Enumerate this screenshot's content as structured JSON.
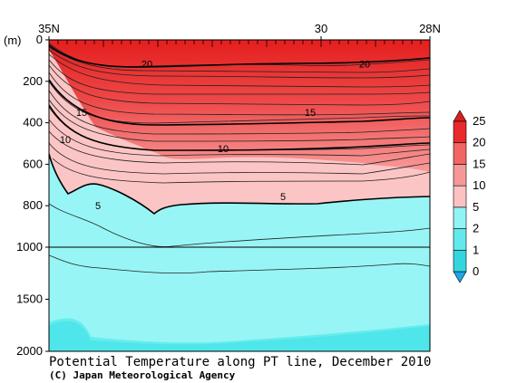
{
  "chart_data": {
    "type": "contour-section",
    "title": "Potential Temperature along PT line, December 2010",
    "credit": "(C) Japan Meteorological Agency",
    "x_axis": {
      "ticks": [
        {
          "value": 35,
          "label": "35N"
        },
        {
          "value": 30,
          "label": "30"
        },
        {
          "value": 28,
          "label": "28N"
        }
      ],
      "range": [
        35,
        28
      ]
    },
    "y_axis": {
      "unit_label": "(m)",
      "ticks_upper": [
        0,
        200,
        400,
        600,
        800,
        1000
      ],
      "ticks_lower": [
        1500,
        2000
      ],
      "labels": [
        "0",
        "200",
        "400",
        "600",
        "800",
        "1000",
        "1500",
        "2000"
      ],
      "break_at": 1000
    },
    "contour_labels": [
      {
        "text": "20",
        "lat": 33.2,
        "depth": 115
      },
      {
        "text": "20",
        "lat": 29.2,
        "depth": 115
      },
      {
        "text": "15",
        "lat": 34.4,
        "depth": 350
      },
      {
        "text": "15",
        "lat": 30.2,
        "depth": 350
      },
      {
        "text": "10",
        "lat": 34.7,
        "depth": 480
      },
      {
        "text": "10",
        "lat": 31.8,
        "depth": 525
      },
      {
        "text": "5",
        "lat": 34.1,
        "depth": 800
      },
      {
        "text": "5",
        "lat": 30.7,
        "depth": 755
      }
    ],
    "colorbar": {
      "labels": [
        "0",
        "1",
        "2",
        "5",
        "10",
        "15",
        "20",
        "25"
      ],
      "colors": [
        "#1fa6e6",
        "#33d6df",
        "#63e8ec",
        "#92f3f5",
        "#fcc2c2",
        "#f79898",
        "#f26565",
        "#e82a2a",
        "#d81f1f"
      ]
    }
  }
}
